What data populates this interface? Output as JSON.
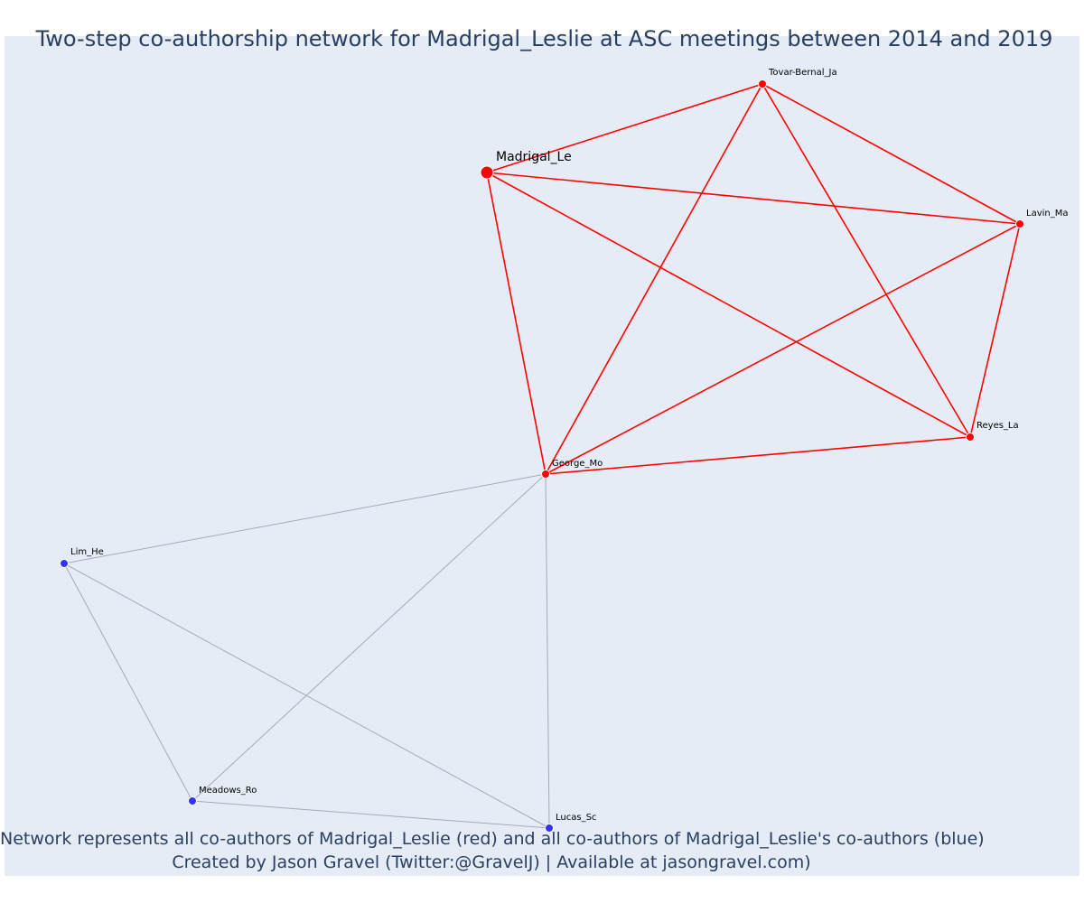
{
  "title": "Two-step co-authorship network for Madrigal_Leslie at ASC meetings between 2014 and 2019",
  "captions": {
    "line1": "Network represents all co-authors of Madrigal_Leslie (red) and all co-authors of Madrigal_Leslie's co-authors (blue)",
    "line2": "Created by Jason Gravel (Twitter:@GravelJ) | Available at jasongravel.com)"
  },
  "colors": {
    "background": "#e5ecf6",
    "direct_coauthor": "#ff0000",
    "second_step_coauthor": "#3333ff",
    "direct_edge": "#ff0000",
    "second_step_edge": "#a8a8b8"
  },
  "nodes": [
    {
      "id": "Madrigal_Le",
      "label": "Madrigal_Le",
      "group": "focal"
    },
    {
      "id": "Tovar-Bernal_Ja",
      "label": "Tovar-Bernal_Ja",
      "group": "direct"
    },
    {
      "id": "Lavin_Ma",
      "label": "Lavin_Ma",
      "group": "direct"
    },
    {
      "id": "Reyes_La",
      "label": "Reyes_La",
      "group": "direct"
    },
    {
      "id": "George_Mo",
      "label": "George_Mo",
      "group": "direct"
    },
    {
      "id": "Lim_He",
      "label": "Lim_He",
      "group": "second"
    },
    {
      "id": "Meadows_Ro",
      "label": "Meadows_Ro",
      "group": "second"
    },
    {
      "id": "Lucas_Sc",
      "label": "Lucas_Sc",
      "group": "second"
    }
  ],
  "edges": [
    {
      "source": "Madrigal_Le",
      "target": "Tovar-Bernal_Ja",
      "group": "direct"
    },
    {
      "source": "Madrigal_Le",
      "target": "Lavin_Ma",
      "group": "direct"
    },
    {
      "source": "Madrigal_Le",
      "target": "Reyes_La",
      "group": "direct"
    },
    {
      "source": "Madrigal_Le",
      "target": "George_Mo",
      "group": "direct"
    },
    {
      "source": "Tovar-Bernal_Ja",
      "target": "Lavin_Ma",
      "group": "direct"
    },
    {
      "source": "Tovar-Bernal_Ja",
      "target": "Reyes_La",
      "group": "direct"
    },
    {
      "source": "Tovar-Bernal_Ja",
      "target": "George_Mo",
      "group": "direct"
    },
    {
      "source": "Lavin_Ma",
      "target": "Reyes_La",
      "group": "direct"
    },
    {
      "source": "Lavin_Ma",
      "target": "George_Mo",
      "group": "direct"
    },
    {
      "source": "Reyes_La",
      "target": "George_Mo",
      "group": "direct"
    },
    {
      "source": "George_Mo",
      "target": "Lim_He",
      "group": "second"
    },
    {
      "source": "George_Mo",
      "target": "Meadows_Ro",
      "group": "second"
    },
    {
      "source": "George_Mo",
      "target": "Lucas_Sc",
      "group": "second"
    },
    {
      "source": "Lim_He",
      "target": "Meadows_Ro",
      "group": "second"
    },
    {
      "source": "Lim_He",
      "target": "Lucas_Sc",
      "group": "second"
    },
    {
      "source": "Meadows_Ro",
      "target": "Lucas_Sc",
      "group": "second"
    }
  ]
}
